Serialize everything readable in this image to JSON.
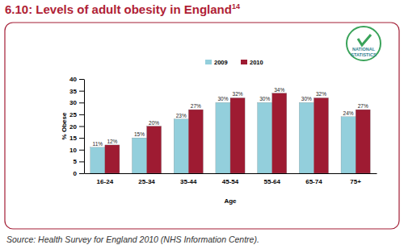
{
  "chart_data": {
    "type": "bar",
    "title": "6.10: Levels of adult obesity in England",
    "title_note": "14",
    "source": "Source: Health Survey for England 2010 (NHS Information Centre).",
    "badge": [
      "NATIONAL",
      "STATISTICS"
    ],
    "x_label": "Age",
    "y_label": "% Obese",
    "categories": [
      "16-24",
      "25-34",
      "35-44",
      "45-54",
      "55-64",
      "65-74",
      "75+"
    ],
    "series": [
      {
        "name": "2009",
        "color": "#93cfdc",
        "values": [
          11,
          15,
          23,
          30,
          30,
          30,
          24
        ],
        "value_labels": [
          "11%",
          "15%",
          "23%",
          "30%",
          "30%",
          "30%",
          "24%"
        ]
      },
      {
        "name": "2010",
        "color": "#9e1b32",
        "values": [
          12,
          20,
          27,
          32,
          34,
          32,
          27
        ],
        "value_labels": [
          "12%",
          "20%",
          "27%",
          "32%",
          "34%",
          "32%",
          "27%"
        ]
      }
    ],
    "ylim": [
      0,
      40
    ],
    "yticks": [
      0,
      5,
      10,
      15,
      20,
      25,
      30,
      35,
      40
    ],
    "grid": false,
    "legend": "top",
    "data_labels": true
  }
}
